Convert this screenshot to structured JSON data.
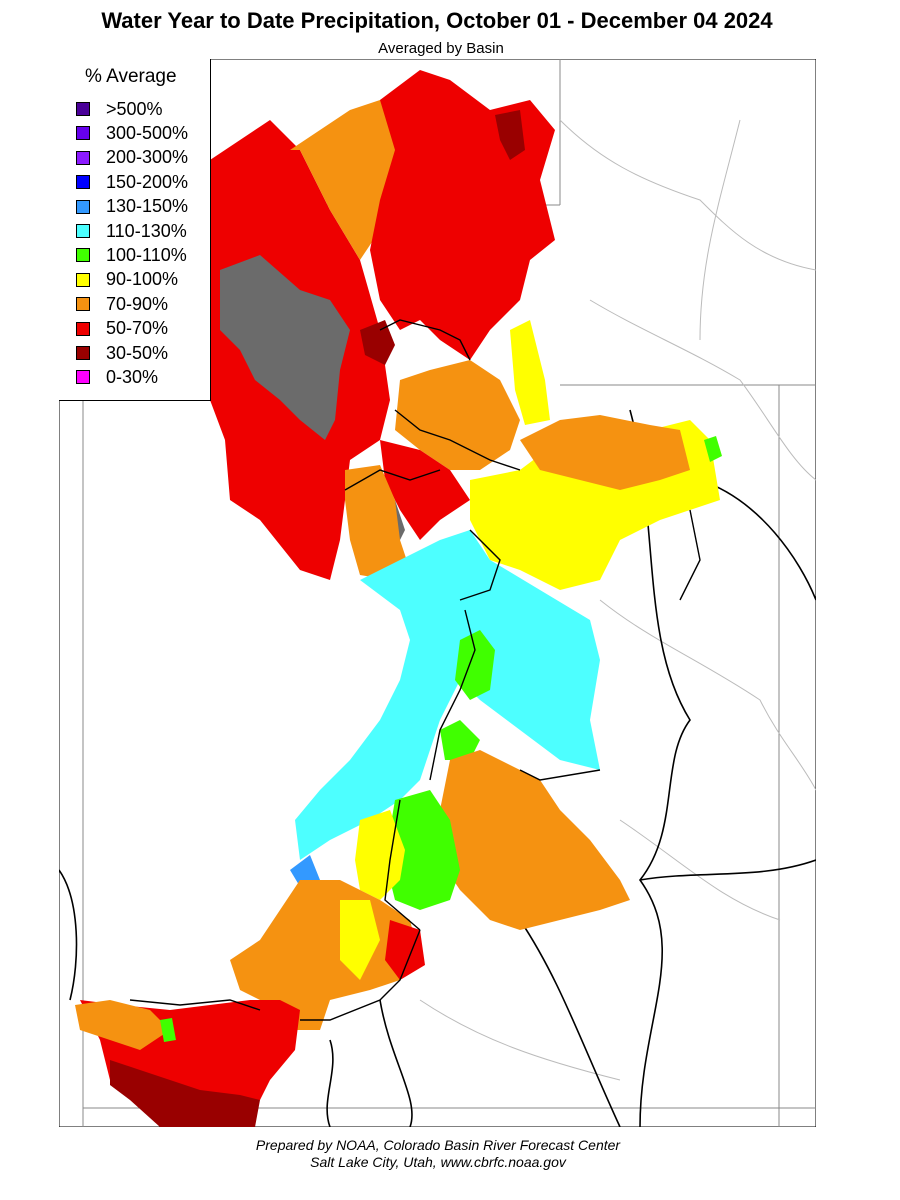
{
  "header": {
    "title": "Water Year to Date Precipitation, October 01  - December 04 2024",
    "subtitle": "Averaged by Basin"
  },
  "legend": {
    "title": "% Average",
    "items": [
      {
        "label": ">500%",
        "color": "#4a0099"
      },
      {
        "label": "300-500%",
        "color": "#6600ee"
      },
      {
        "label": "200-300%",
        "color": "#8b1aff"
      },
      {
        "label": "150-200%",
        "color": "#0000ff"
      },
      {
        "label": "130-150%",
        "color": "#3399ff"
      },
      {
        "label": "110-130%",
        "color": "#4dffff"
      },
      {
        "label": "100-110%",
        "color": "#40ff00"
      },
      {
        "label": "90-100%",
        "color": "#ffff00"
      },
      {
        "label": "70-90%",
        "color": "#f59211"
      },
      {
        "label": "50-70%",
        "color": "#ee0000"
      },
      {
        "label": "30-50%",
        "color": "#990000"
      },
      {
        "label": "0-30%",
        "color": "#ff00ff"
      }
    ]
  },
  "map": {
    "no_data_color": "#6b6b6b"
  },
  "footer": {
    "line1": "Prepared by NOAA, Colorado Basin River Forecast Center",
    "line2": "Salt Lake City, Utah, www.cbrfc.noaa.gov"
  }
}
